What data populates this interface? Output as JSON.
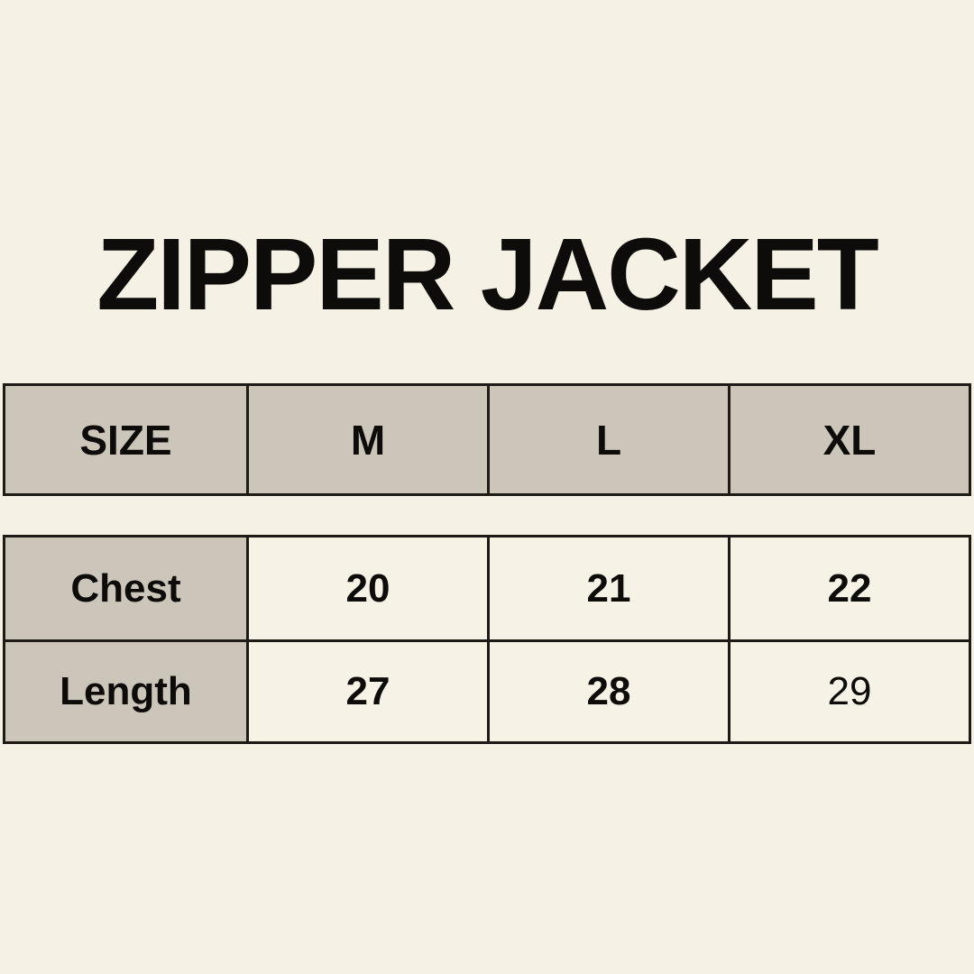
{
  "page": {
    "title": "ZIPPER JACKET",
    "background": "#F5F1E4"
  },
  "colors": {
    "header_cell_bg": "#CBC6B9",
    "value_cell_bg": "#F6F2E6",
    "border": "#1E1B16",
    "text": "#0D0C0A"
  },
  "chart_data": {
    "type": "table",
    "title": "ZIPPER JACKET",
    "header": {
      "label": "SIZE",
      "sizes": [
        "M",
        "L",
        "XL"
      ]
    },
    "rows": [
      {
        "label": "Chest",
        "values": [
          "20",
          "21",
          "22"
        ],
        "weights": [
          "700",
          "700",
          "700"
        ]
      },
      {
        "label": "Length",
        "values": [
          "27",
          "28",
          "29"
        ],
        "weights": [
          "700",
          "700",
          "400"
        ]
      }
    ]
  }
}
